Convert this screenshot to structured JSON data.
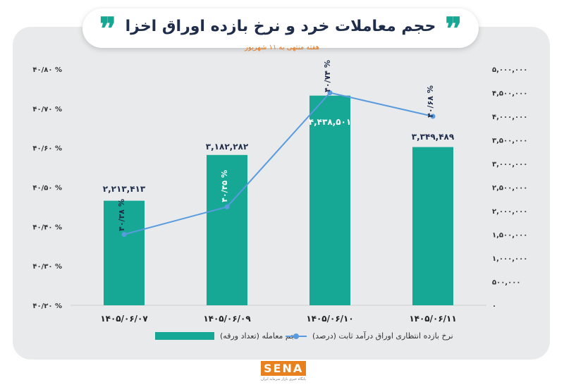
{
  "header": {
    "title": "حجم معاملات خرد و نرخ بازده اوراق اخزا",
    "quote_mark": "❞",
    "subtitle": "هفته منتهی به ۱۱ شهریور"
  },
  "legend": {
    "bars_label": "حجم معامله (تعداد ورقه)",
    "line_label": "نرخ بازده انتظاری اوراق درآمد ثابت (درصد)"
  },
  "logo": {
    "text": "SENA",
    "subtext": "پایگاه خبری بازار سرمایه ایران"
  },
  "colors": {
    "bar": "#16a795",
    "line": "#5a9be0",
    "title": "#1f2d4a",
    "subtitle": "#e07a26"
  },
  "chart_data": {
    "type": "bar",
    "categories": [
      "۱۴۰۵/۰۶/۰۷",
      "۱۴۰۵/۰۶/۰۹",
      "۱۴۰۵/۰۶/۱۰",
      "۱۴۰۵/۰۶/۱۱"
    ],
    "series": [
      {
        "type": "bar",
        "axis": "right",
        "values": [
          2213413,
          3182282,
          4438501,
          3349489
        ],
        "labels": [
          "۲,۲۱۳,۴۱۳",
          "۳,۱۸۲,۲۸۲",
          "۴,۴۳۸,۵۰۱",
          "۳,۳۴۹,۴۸۹"
        ]
      },
      {
        "type": "line",
        "axis": "left",
        "values": [
          40.38,
          40.45,
          40.74,
          40.68
        ],
        "labels": [
          "۴۰/۳۸ %",
          "۴۰/۴۵ %",
          "۴۰/۷۴ %",
          "۴۰/۶۸ %"
        ]
      }
    ],
    "left_axis": {
      "range": [
        40.2,
        40.8
      ],
      "ticks": [
        40.2,
        40.3,
        40.4,
        40.5,
        40.6,
        40.7,
        40.8
      ],
      "tick_labels": [
        "۴۰/۲۰ %",
        "۴۰/۳۰ %",
        "۴۰/۴۰ %",
        "۴۰/۵۰ %",
        "۴۰/۶۰ %",
        "۴۰/۷۰ %",
        "۴۰/۸۰ %"
      ]
    },
    "right_axis": {
      "range": [
        0,
        5000000
      ],
      "ticks": [
        0,
        500000,
        1000000,
        1500000,
        2000000,
        2500000,
        3000000,
        3500000,
        4000000,
        4500000,
        5000000
      ],
      "tick_labels": [
        "۰",
        "۵۰۰,۰۰۰",
        "۱,۰۰۰,۰۰۰",
        "۱,۵۰۰,۰۰۰",
        "۲,۰۰۰,۰۰۰",
        "۲,۵۰۰,۰۰۰",
        "۳,۰۰۰,۰۰۰",
        "۳,۵۰۰,۰۰۰",
        "۴,۰۰۰,۰۰۰",
        "۴,۵۰۰,۰۰۰",
        "۵,۰۰۰,۰۰۰"
      ]
    },
    "grid": false,
    "legend_position": "bottom"
  }
}
